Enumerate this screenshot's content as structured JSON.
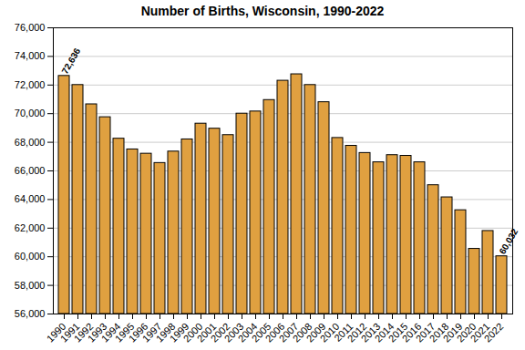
{
  "chart_data": {
    "type": "bar",
    "title": "Number of Births, Wisconsin, 1990-2022",
    "categories": [
      "1990",
      "1991",
      "1992",
      "1993",
      "1994",
      "1995",
      "1996",
      "1997",
      "1998",
      "1999",
      "2000",
      "2001",
      "2002",
      "2003",
      "2004",
      "2005",
      "2006",
      "2007",
      "2008",
      "2009",
      "2010",
      "2011",
      "2012",
      "2013",
      "2014",
      "2015",
      "2016",
      "2017",
      "2018",
      "2019",
      "2020",
      "2021",
      "2022"
    ],
    "values": [
      72636,
      72000,
      70650,
      69750,
      68250,
      67500,
      67200,
      66550,
      67350,
      68200,
      69300,
      68950,
      68500,
      70000,
      70150,
      70950,
      72300,
      72750,
      72000,
      70800,
      68300,
      67750,
      67250,
      66600,
      67100,
      67050,
      66600,
      65000,
      64150,
      63250,
      60550,
      61800,
      60032
    ],
    "value_labels": [
      "72,636",
      null,
      null,
      null,
      null,
      null,
      null,
      null,
      null,
      null,
      null,
      null,
      null,
      null,
      null,
      null,
      null,
      null,
      null,
      null,
      null,
      null,
      null,
      null,
      null,
      null,
      null,
      null,
      null,
      null,
      null,
      null,
      "60,032"
    ],
    "data_labels": true,
    "color": "#e0a040",
    "ylim": [
      56000,
      76000
    ],
    "yticks": [
      {
        "value": 56000,
        "label": "56,000"
      },
      {
        "value": 58000,
        "label": "58,000"
      },
      {
        "value": 60000,
        "label": "60,000"
      },
      {
        "value": 62000,
        "label": "62,000"
      },
      {
        "value": 64000,
        "label": "64,000"
      },
      {
        "value": 66000,
        "label": "66,000"
      },
      {
        "value": 68000,
        "label": "68,000"
      },
      {
        "value": 70000,
        "label": "70,000"
      },
      {
        "value": 72000,
        "label": "72,000"
      },
      {
        "value": 74000,
        "label": "74,000"
      },
      {
        "value": 76000,
        "label": "76,000"
      }
    ],
    "grid": true
  }
}
